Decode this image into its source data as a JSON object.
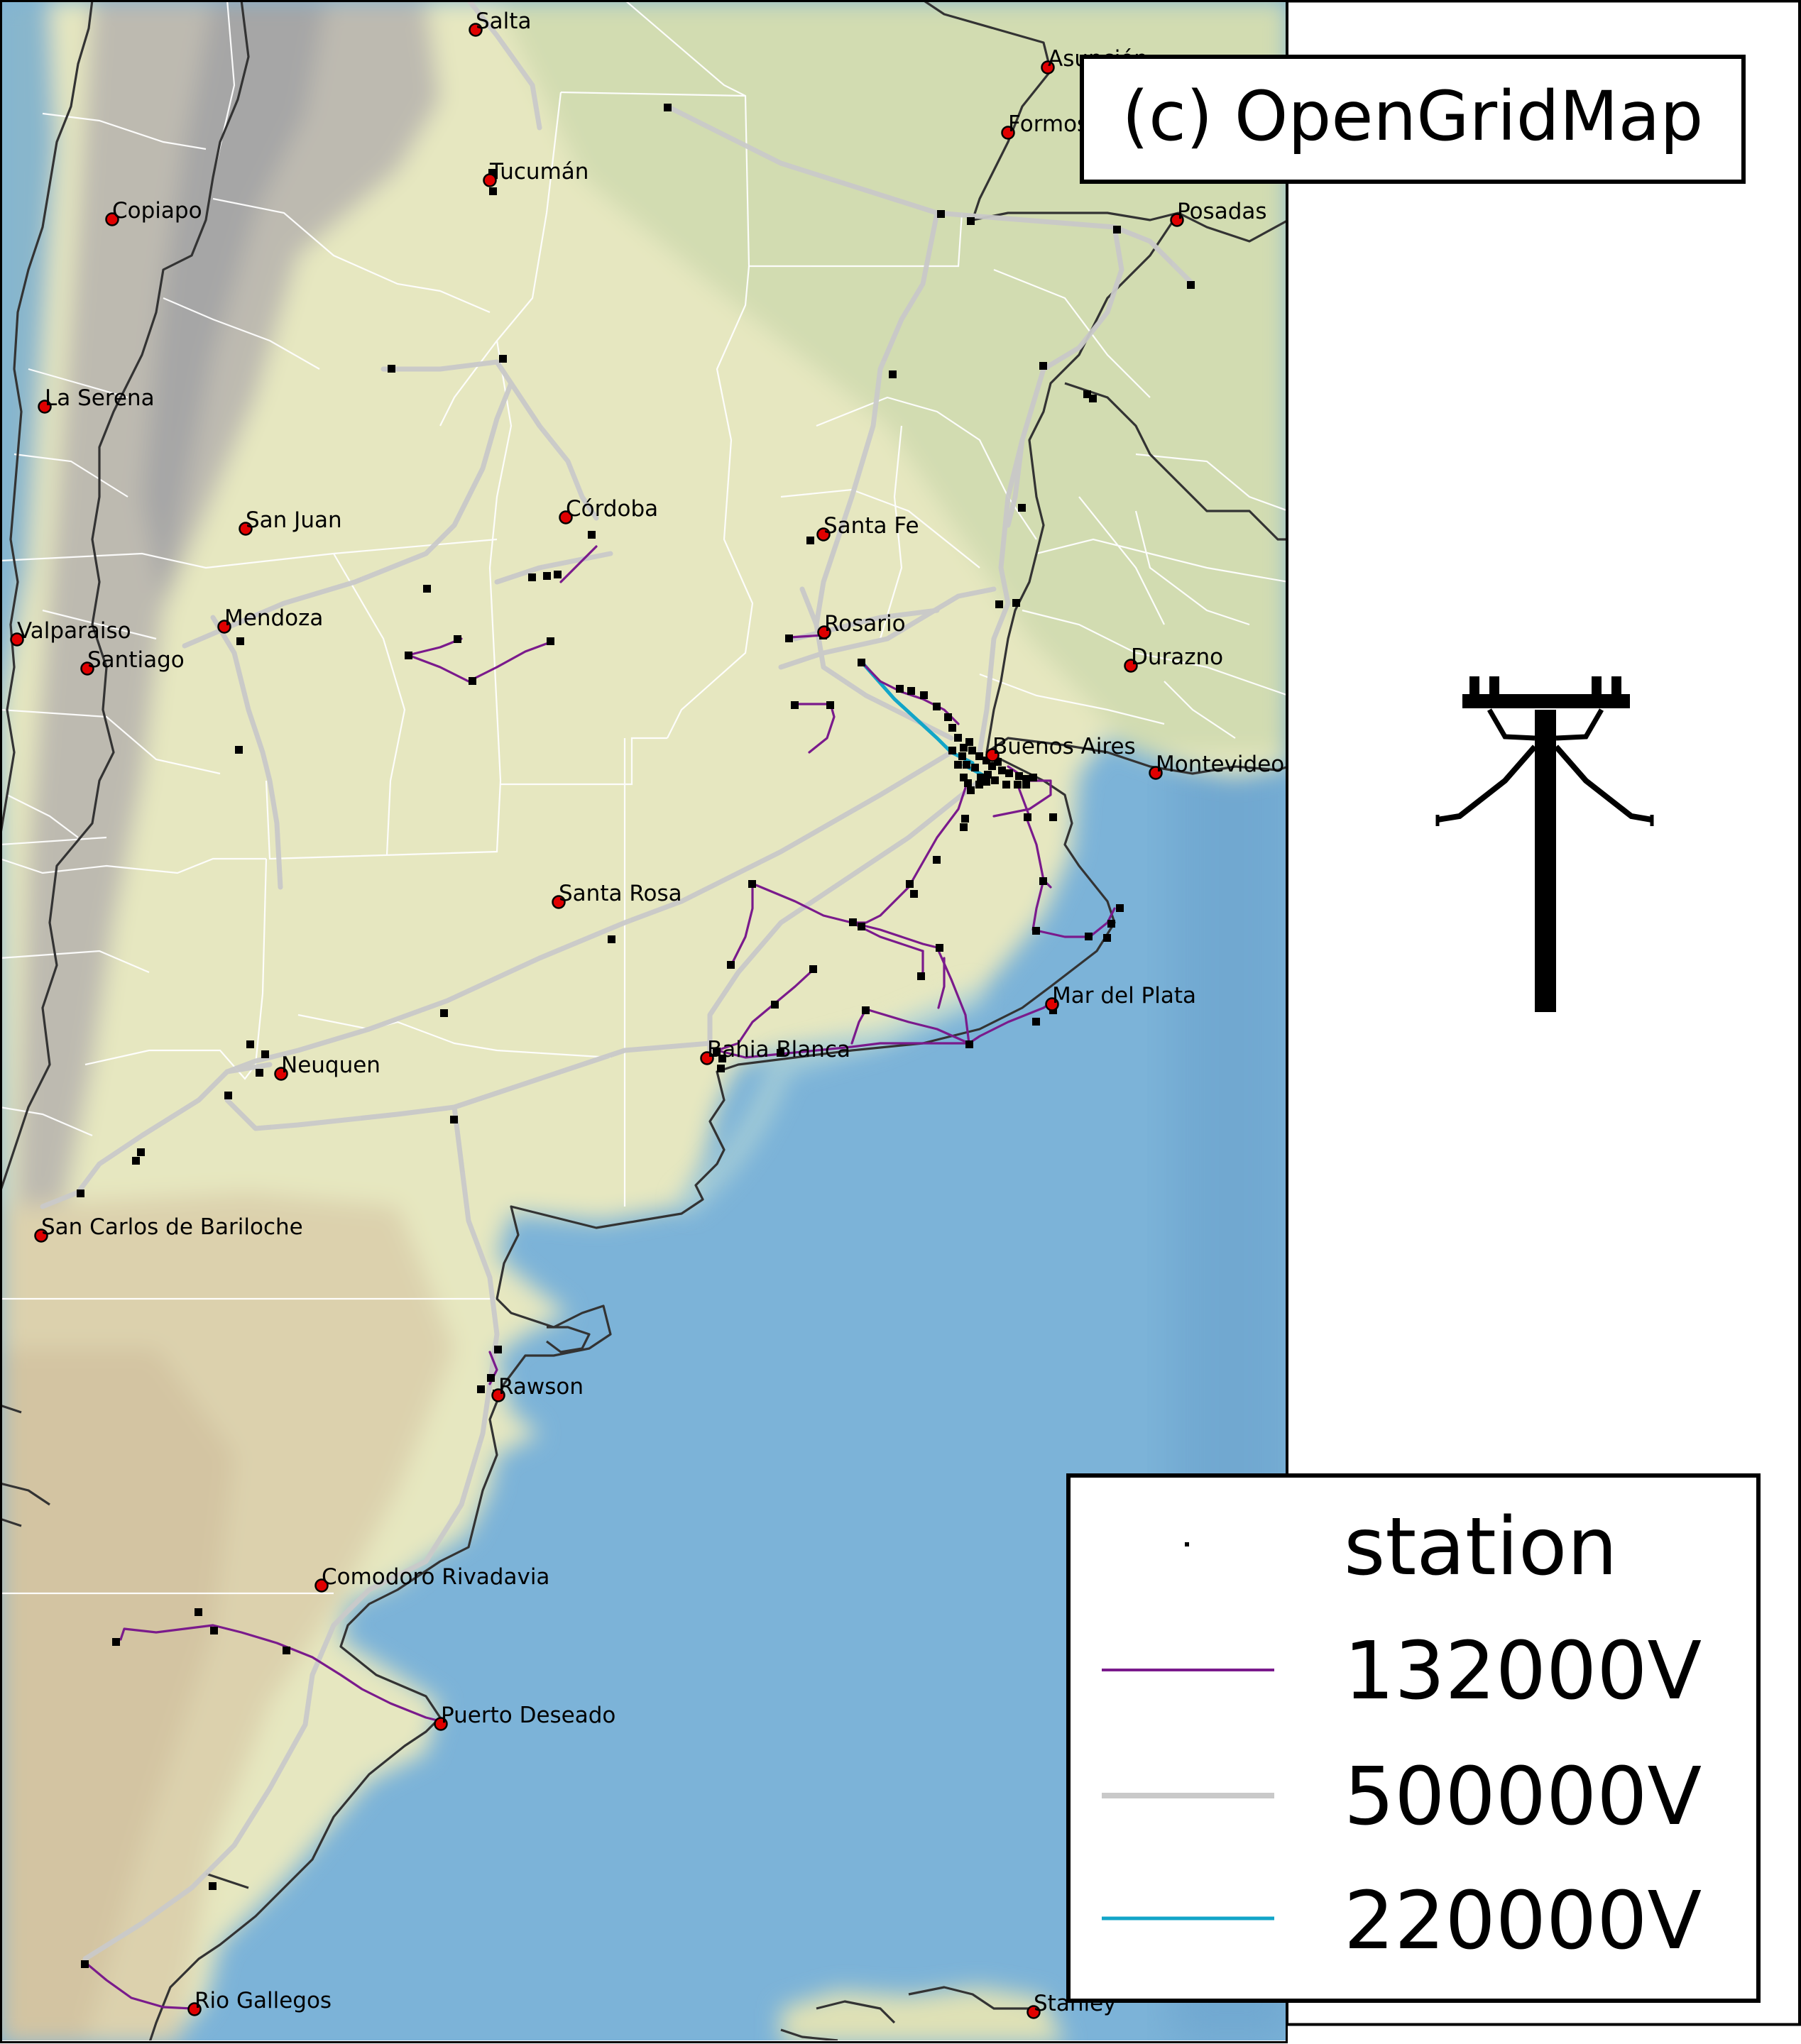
{
  "credit": "(c) OpenGridMap",
  "legend": {
    "items": [
      {
        "label": "station",
        "kind": "station"
      },
      {
        "label": "132000V",
        "kind": "line",
        "color": "#7a1a8c"
      },
      {
        "label": "500000V",
        "kind": "line",
        "color": "#c9c9c9"
      },
      {
        "label": "220000V",
        "kind": "line",
        "color": "#12a5c8"
      }
    ]
  },
  "colors": {
    "sea": "#7cb3d8",
    "land": "#e4e6bf",
    "mountain": "#b9b9b9",
    "coastline": "#333333",
    "border": "#ffffff",
    "city_marker": "#e00000",
    "station": "#000000",
    "frame": "#000000"
  },
  "icon": "power-pylon-icon",
  "cities": [
    {
      "name": "Salta"
    },
    {
      "name": "Asunción"
    },
    {
      "name": "Formosa"
    },
    {
      "name": "Tucumán"
    },
    {
      "name": "Copiapo"
    },
    {
      "name": "Posadas"
    },
    {
      "name": "La Serena"
    },
    {
      "name": "Córdoba"
    },
    {
      "name": "Santa Fe"
    },
    {
      "name": "San Juan"
    },
    {
      "name": "Rosario"
    },
    {
      "name": "Mendoza"
    },
    {
      "name": "Valparaiso"
    },
    {
      "name": "Santiago"
    },
    {
      "name": "Durazno"
    },
    {
      "name": "Buenos Aires"
    },
    {
      "name": "Montevideo"
    },
    {
      "name": "Santa Rosa"
    },
    {
      "name": "Mar del Plata"
    },
    {
      "name": "Bahia Blanca"
    },
    {
      "name": "Neuquen"
    },
    {
      "name": "San Carlos de Bariloche"
    },
    {
      "name": "Rawson"
    },
    {
      "name": "Comodoro Rivadavia"
    },
    {
      "name": "Puerto Deseado"
    },
    {
      "name": "Rio Gallegos"
    },
    {
      "name": "Stanley"
    }
  ]
}
